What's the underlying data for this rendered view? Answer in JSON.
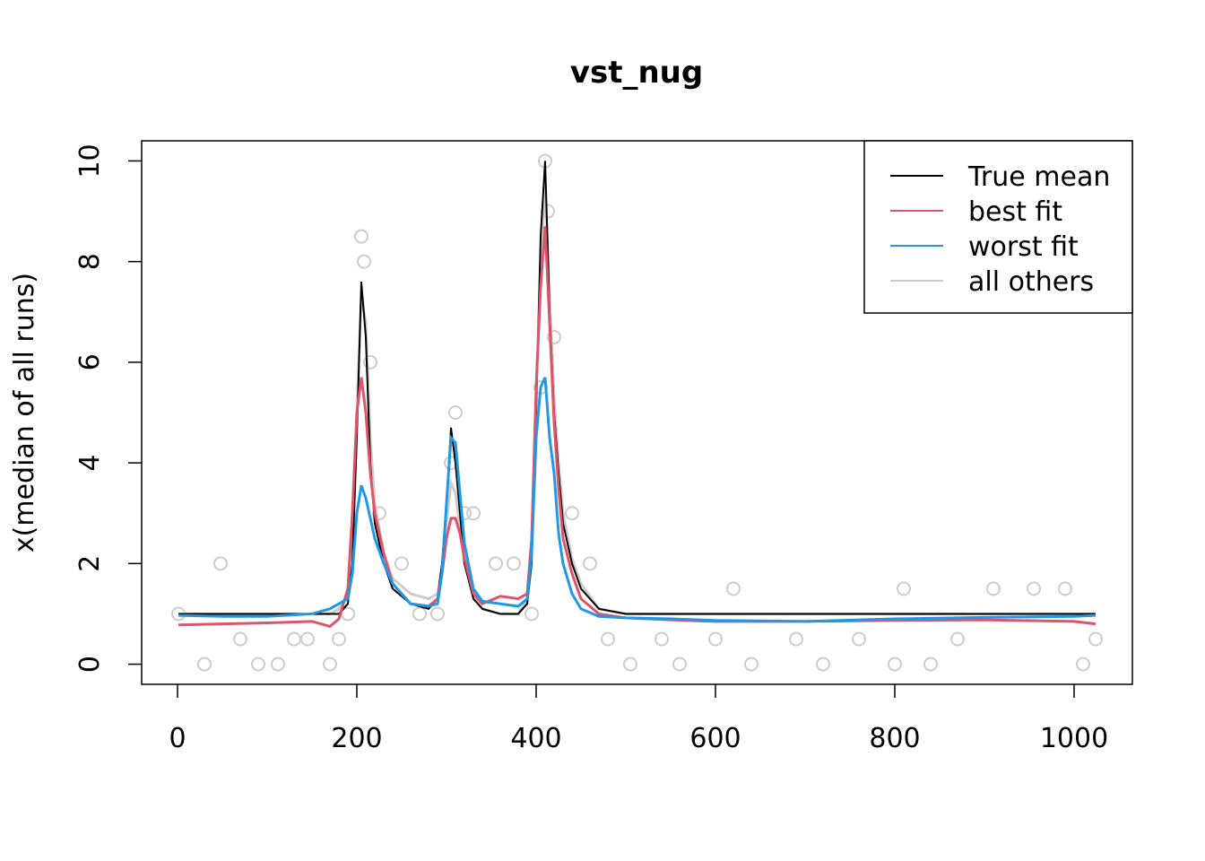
{
  "chart_data": {
    "type": "line",
    "title": "vst_nug",
    "ylabel": "x(median of all runs)",
    "xlim": [
      -40,
      1065
    ],
    "ylim": [
      -0.4,
      10.4
    ],
    "xticks": [
      0,
      200,
      400,
      600,
      800,
      1000
    ],
    "yticks": [
      0,
      2,
      4,
      6,
      8,
      10
    ],
    "legend": "topright",
    "x": [
      1,
      50,
      100,
      150,
      170,
      180,
      190,
      195,
      200,
      205,
      210,
      215,
      220,
      230,
      240,
      260,
      280,
      290,
      295,
      300,
      305,
      310,
      315,
      320,
      330,
      340,
      360,
      380,
      390,
      395,
      400,
      405,
      410,
      415,
      420,
      425,
      430,
      440,
      450,
      470,
      500,
      550,
      600,
      700,
      800,
      900,
      1000,
      1024
    ],
    "series": [
      {
        "name": "all others",
        "color": "#cccccc",
        "values": [
          1,
          1,
          1,
          1,
          1,
          1.1,
          1.4,
          2.5,
          5,
          7.3,
          6.8,
          4.5,
          3.2,
          2.2,
          1.7,
          1.4,
          1.3,
          1.4,
          1.9,
          2.8,
          3.6,
          3.4,
          2.7,
          2,
          1.4,
          1.1,
          1,
          1,
          1.3,
          2.4,
          5.4,
          8,
          9.5,
          7.3,
          5.3,
          4,
          3,
          2.1,
          1.6,
          1.1,
          1,
          1,
          1,
          1,
          1,
          1,
          1,
          1
        ]
      },
      {
        "name": "True mean",
        "color": "#000000",
        "values": [
          1,
          1,
          1,
          1,
          1,
          1,
          1.2,
          2,
          4.5,
          7.6,
          6.5,
          4,
          2.8,
          2,
          1.5,
          1.2,
          1.1,
          1.3,
          2,
          3.2,
          4.7,
          4,
          3,
          2,
          1.3,
          1.1,
          1,
          1,
          1.2,
          2,
          5,
          8.5,
          10,
          7,
          5,
          3.8,
          2.8,
          2,
          1.5,
          1.1,
          1,
          1,
          1,
          1,
          1,
          1,
          1,
          1
        ]
      },
      {
        "name": "best fit",
        "color": "#df536b",
        "values": [
          0.78,
          0.8,
          0.82,
          0.85,
          0.75,
          0.9,
          1.5,
          3,
          5,
          5.7,
          5,
          3.8,
          3,
          2.2,
          1.6,
          1.2,
          1.15,
          1.3,
          1.8,
          2.5,
          2.9,
          2.9,
          2.6,
          2.1,
          1.4,
          1.2,
          1.35,
          1.3,
          1.4,
          2.5,
          5.5,
          7.5,
          8.7,
          6.8,
          4.8,
          3.5,
          2.5,
          1.8,
          1.3,
          1,
          0.92,
          0.88,
          0.85,
          0.85,
          0.87,
          0.88,
          0.85,
          0.8
        ]
      },
      {
        "name": "worst fit",
        "color": "#2297e6",
        "values": [
          0.97,
          0.95,
          0.95,
          1,
          1.1,
          1.2,
          1.3,
          1.8,
          3,
          3.55,
          3.3,
          2.9,
          2.5,
          2,
          1.6,
          1.2,
          1.15,
          1.2,
          1.8,
          3.2,
          4.5,
          4.4,
          3.4,
          2.4,
          1.5,
          1.25,
          1.2,
          1.15,
          1.3,
          2.2,
          4.5,
          5.5,
          5.7,
          4.5,
          3.8,
          2.6,
          2,
          1.4,
          1.1,
          0.95,
          0.92,
          0.9,
          0.87,
          0.85,
          0.9,
          0.93,
          0.95,
          0.97
        ]
      }
    ],
    "points": {
      "color": "#cccccc",
      "x": [
        1,
        30,
        48,
        70,
        90,
        112,
        130,
        145,
        170,
        180,
        190,
        205,
        208,
        215,
        225,
        250,
        270,
        290,
        305,
        310,
        320,
        330,
        355,
        375,
        395,
        405,
        410,
        413,
        420,
        440,
        460,
        480,
        505,
        540,
        560,
        600,
        620,
        640,
        690,
        720,
        760,
        800,
        810,
        840,
        870,
        910,
        955,
        990,
        1010,
        1024
      ],
      "y": [
        1,
        0,
        2,
        0.5,
        0,
        0,
        0.5,
        0.5,
        0,
        0.5,
        1,
        8.5,
        8,
        6,
        3,
        2,
        1,
        1,
        4,
        5,
        3,
        3,
        2,
        2,
        1,
        5.5,
        10,
        9,
        6.5,
        3,
        2,
        0.5,
        0,
        0.5,
        0,
        0.5,
        1.5,
        0,
        0.5,
        0,
        0.5,
        0,
        1.5,
        0,
        0.5,
        1.5,
        1.5,
        1.5,
        0,
        0.5
      ]
    }
  }
}
